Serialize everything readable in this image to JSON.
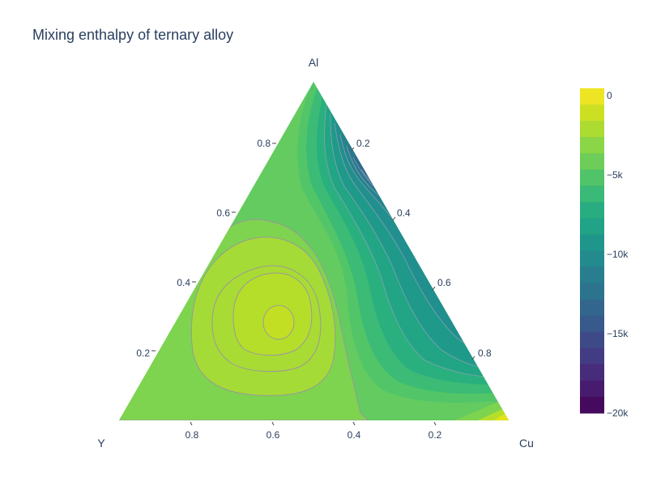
{
  "chart_data": {
    "type": "ternary_contour",
    "title": "Mixing enthalpy of ternary alloy",
    "axes": {
      "a": {
        "label": "Al",
        "ticks": [
          "0.2",
          "0.4",
          "0.6",
          "0.8"
        ]
      },
      "b": {
        "label": "Y",
        "ticks": [
          "0.2",
          "0.4",
          "0.6",
          "0.8"
        ]
      },
      "c": {
        "label": "Cu",
        "ticks": [
          "0.2",
          "0.4",
          "0.6",
          "0.8"
        ]
      }
    },
    "colorbar": {
      "colorscale": "Viridis",
      "range": [
        -20000,
        0
      ],
      "tick_values": [
        0,
        -5000,
        -10000,
        -15000,
        -20000
      ],
      "tick_labels": [
        "0",
        "−5k",
        "−10k",
        "−15k",
        "−20k"
      ],
      "levels": 20,
      "colors": [
        "#440154",
        "#482173",
        "#433e85",
        "#38588c",
        "#2d708e",
        "#25858e",
        "#1e9b8a",
        "#2ab07f",
        "#52c569",
        "#86d549",
        "#c2df23",
        "#fde725"
      ]
    },
    "contour_lines_color": "#a0a0a0",
    "min_region": {
      "a": 0.35,
      "b": 0.42,
      "c": 0.23,
      "approx_value": -2000
    },
    "grid": false
  }
}
